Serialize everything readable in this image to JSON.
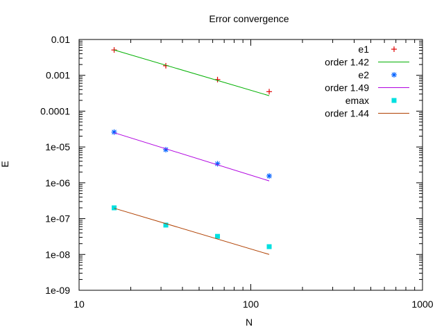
{
  "chart_data": {
    "type": "scatter",
    "title": "Error convergence",
    "xlabel": "N",
    "ylabel": "E",
    "xscale": "log",
    "yscale": "log",
    "xlim": [
      10,
      1000
    ],
    "ylim": [
      1e-09,
      0.01
    ],
    "x_tick_labels": [
      "10",
      "100",
      "1000"
    ],
    "y_tick_labels": [
      "0.01",
      "0.001",
      "0.0001",
      "1e-05",
      "1e-06",
      "1e-07",
      "1e-08",
      "1e-09"
    ],
    "grid": false,
    "legend_position": "top-right",
    "x": [
      16,
      32,
      64,
      128
    ],
    "series": [
      {
        "name": "e1",
        "kind": "points",
        "marker": "plus",
        "color": "#e00000",
        "values": [
          0.0051,
          0.00185,
          0.00076,
          0.00035
        ]
      },
      {
        "name": "order 1.42",
        "kind": "line",
        "color": "#00b000",
        "values": [
          0.0051,
          0.00191,
          0.00072,
          0.00027
        ]
      },
      {
        "name": "e2",
        "kind": "points",
        "marker": "asterisk",
        "color": "#0060ff",
        "values": [
          2.6e-05,
          8.4e-06,
          3.4e-06,
          1.55e-06
        ]
      },
      {
        "name": "order 1.49",
        "kind": "line",
        "color": "#b000e0",
        "values": [
          2.5e-05,
          8.9e-06,
          3.2e-06,
          1.13e-06
        ]
      },
      {
        "name": "emax",
        "kind": "points",
        "marker": "filled-square",
        "color": "#00e0e0",
        "values": [
          2e-07,
          6.6e-08,
          3.2e-08,
          1.65e-08
        ]
      },
      {
        "name": "order 1.44",
        "kind": "line",
        "color": "#b04000",
        "values": [
          1.95e-07,
          7.2e-08,
          2.7e-08,
          1e-08
        ]
      }
    ]
  }
}
